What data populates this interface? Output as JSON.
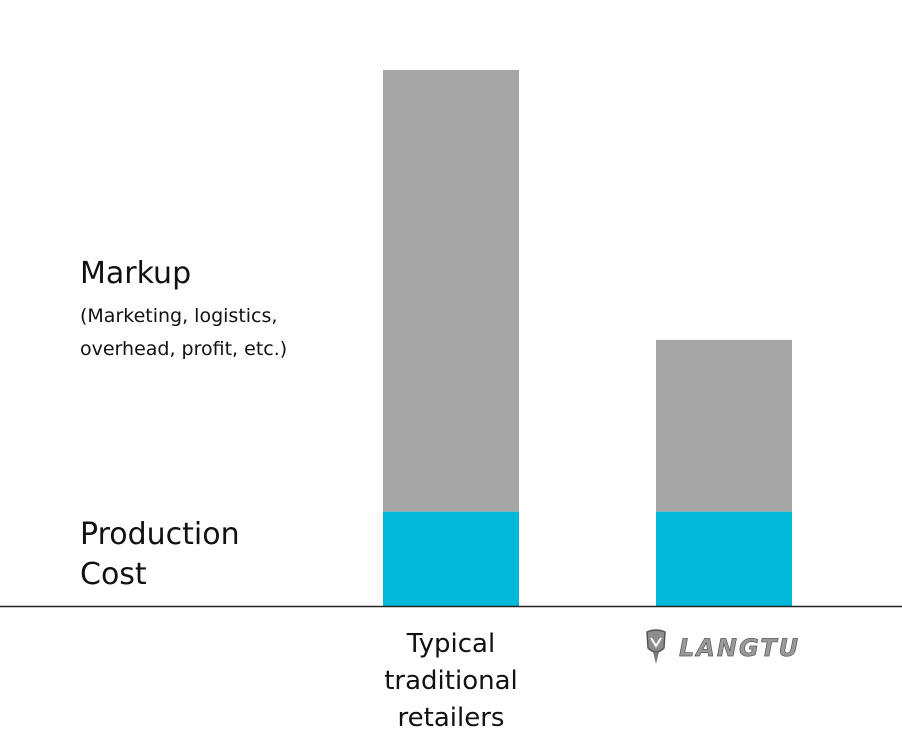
{
  "legend": {
    "markup_title": "Markup",
    "markup_note": "(Marketing, logistics, overhead, profit, etc.)",
    "production_label": "Production Cost"
  },
  "logo": {
    "text": "LANGTU",
    "icon": "langtu-helmet-logo-icon"
  },
  "colors": {
    "markup": "#a6a6a6",
    "production": "#00b8d9",
    "baseline": "#222222"
  },
  "chart_data": {
    "type": "bar",
    "stacked": true,
    "categories": [
      "Typical traditional retailers",
      "LANGTU"
    ],
    "series": [
      {
        "name": "Production Cost",
        "values": [
          1.0,
          1.0
        ]
      },
      {
        "name": "Markup",
        "values": [
          4.68,
          1.82
        ]
      }
    ],
    "ylim": [
      0,
      5.68
    ],
    "grid": false,
    "xlabel": "",
    "ylabel": ""
  }
}
